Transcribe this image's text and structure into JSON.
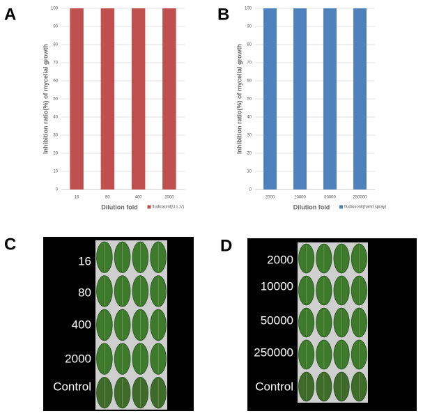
{
  "panel_labels": [
    "A",
    "B",
    "C",
    "D"
  ],
  "chart_data": [
    {
      "type": "bar",
      "categories": [
        "16",
        "80",
        "400",
        "2000"
      ],
      "series": [
        {
          "name": "fludioxonil(U.L.V)",
          "color": "#c0504d",
          "values": [
            100,
            100,
            100,
            100
          ]
        }
      ],
      "ylim": [
        0,
        100
      ],
      "yticks": [
        0,
        10,
        20,
        30,
        40,
        50,
        60,
        70,
        80,
        90,
        100
      ],
      "xlabel": "Dilution fold",
      "ylabel": "Inhibition ratio(%) of mycelial growth",
      "grid": true,
      "legend": "bottom-right"
    },
    {
      "type": "bar",
      "categories": [
        "2000",
        "10000",
        "50000",
        "250000"
      ],
      "series": [
        {
          "name": "fludioxonil(hand spray)",
          "color": "#4f81bd",
          "values": [
            100,
            100,
            100,
            100
          ]
        }
      ],
      "ylim": [
        0,
        100
      ],
      "yticks": [
        0,
        10,
        20,
        30,
        40,
        50,
        60,
        70,
        80,
        90,
        100
      ],
      "xlabel": "Dilution fold",
      "ylabel": "Inhibition ratio(%) of mycelial growth",
      "grid": true,
      "legend": "bottom-right"
    }
  ],
  "photos": [
    {
      "labels": [
        "16",
        "80",
        "400",
        "2000",
        "Control"
      ]
    },
    {
      "labels": [
        "2000",
        "10000",
        "50000",
        "250000",
        "Control"
      ]
    }
  ]
}
